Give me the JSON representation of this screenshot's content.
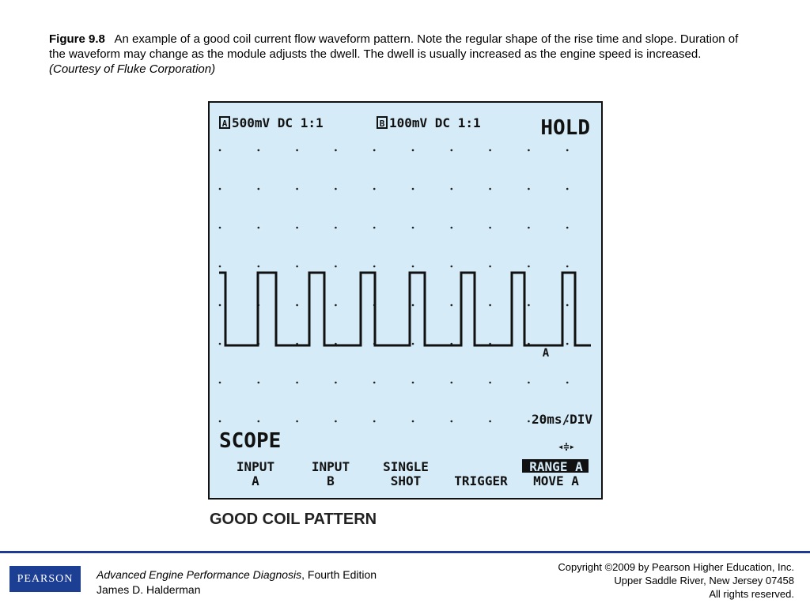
{
  "caption": {
    "label": "Figure 9.8",
    "text": "An example of a good coil current flow waveform pattern. Note the regular shape of the rise time and slope. Duration of the waveform may change as the module adjusts the dwell. The dwell is usually increased as the engine speed is increased.",
    "credit": "(Courtesy of Fluke Corporation)"
  },
  "scope": {
    "channel_a": {
      "icon": "A",
      "setting": "500mV DC 1:1"
    },
    "channel_b": {
      "icon": "B",
      "setting": "100mV DC 1:1"
    },
    "status": "HOLD",
    "marker": "A",
    "timebase": "20ms/DIV",
    "mode": "SCOPE",
    "softkeys": [
      {
        "top": "INPUT",
        "bottom": "A"
      },
      {
        "top": "INPUT",
        "bottom": "B"
      },
      {
        "top": "SINGLE",
        "bottom": "SHOT"
      },
      {
        "bottom": "TRIGGER"
      },
      {
        "top": "RANGE A",
        "bottom": "MOVE A"
      }
    ]
  },
  "figure_title": "GOOD COIL PATTERN",
  "footer": {
    "logo": "PEARSON",
    "book_title": "Advanced Engine Performance Diagnosis",
    "edition": ", Fourth Edition",
    "author": "James D. Halderman",
    "copyright": [
      "Copyright ©2009 by Pearson Higher Education, Inc.",
      "Upper Saddle River, New Jersey 07458",
      "All rights reserved."
    ]
  }
}
